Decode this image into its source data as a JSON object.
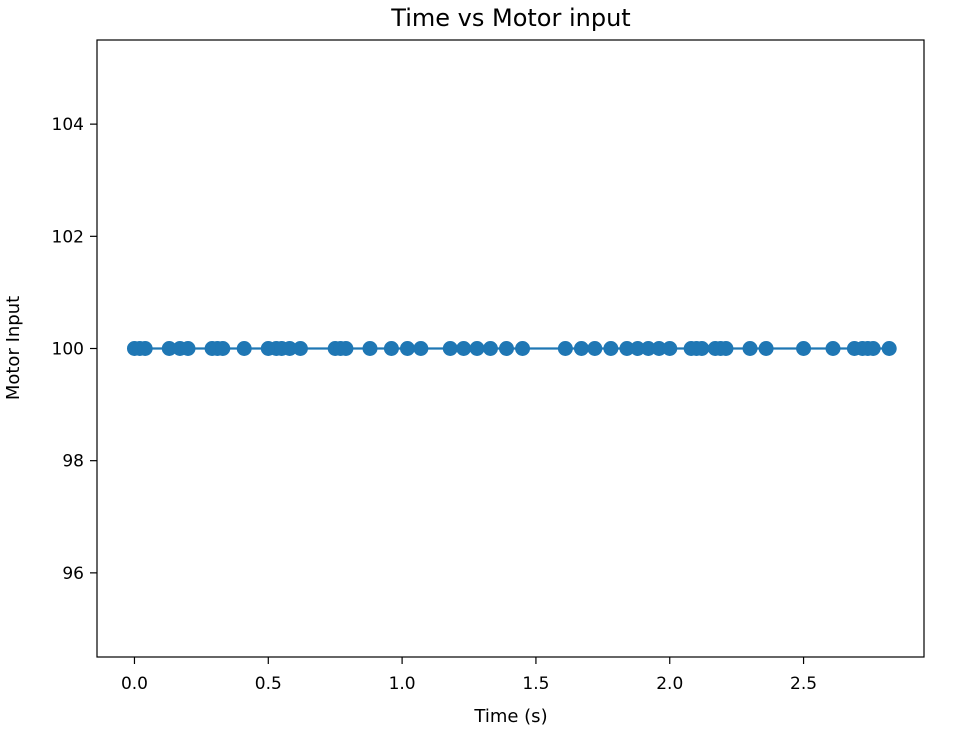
{
  "chart_data": {
    "type": "line",
    "title": "Time vs Motor input",
    "xlabel": "Time (s)",
    "ylabel": "Motor Input",
    "xlim": [
      -0.14,
      2.95
    ],
    "ylim": [
      94.5,
      105.5
    ],
    "xticks": [
      {
        "value": 0.0,
        "label": "0.0"
      },
      {
        "value": 0.5,
        "label": "0.5"
      },
      {
        "value": 1.0,
        "label": "1.0"
      },
      {
        "value": 1.5,
        "label": "1.5"
      },
      {
        "value": 2.0,
        "label": "2.0"
      },
      {
        "value": 2.5,
        "label": "2.5"
      }
    ],
    "yticks": [
      {
        "value": 96,
        "label": "96"
      },
      {
        "value": 98,
        "label": "98"
      },
      {
        "value": 100,
        "label": "100"
      },
      {
        "value": 102,
        "label": "102"
      },
      {
        "value": 104,
        "label": "104"
      }
    ],
    "grid": false,
    "series": [
      {
        "color": "#1f77b4",
        "marker": "circle",
        "x": [
          0.0,
          0.02,
          0.04,
          0.13,
          0.17,
          0.2,
          0.29,
          0.31,
          0.33,
          0.41,
          0.5,
          0.53,
          0.55,
          0.58,
          0.62,
          0.75,
          0.77,
          0.79,
          0.88,
          0.96,
          1.02,
          1.07,
          1.18,
          1.23,
          1.28,
          1.33,
          1.39,
          1.45,
          1.61,
          1.67,
          1.72,
          1.78,
          1.84,
          1.88,
          1.92,
          1.96,
          2.0,
          2.08,
          2.1,
          2.12,
          2.17,
          2.19,
          2.21,
          2.3,
          2.36,
          2.5,
          2.61,
          2.69,
          2.72,
          2.74,
          2.76,
          2.82
        ],
        "y": [
          100,
          100,
          100,
          100,
          100,
          100,
          100,
          100,
          100,
          100,
          100,
          100,
          100,
          100,
          100,
          100,
          100,
          100,
          100,
          100,
          100,
          100,
          100,
          100,
          100,
          100,
          100,
          100,
          100,
          100,
          100,
          100,
          100,
          100,
          100,
          100,
          100,
          100,
          100,
          100,
          100,
          100,
          100,
          100,
          100,
          100,
          100,
          100,
          100,
          100,
          100,
          100
        ]
      }
    ]
  }
}
